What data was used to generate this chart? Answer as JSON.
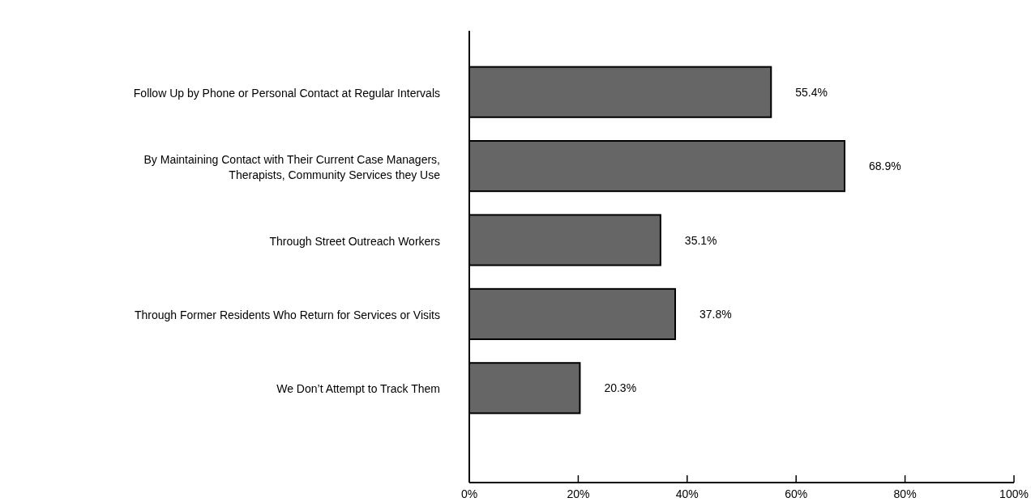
{
  "chart_data": {
    "type": "bar",
    "orientation": "horizontal",
    "categories": [
      "Follow Up by Phone or Personal Contact at Regular Intervals",
      "By Maintaining Contact with Their Current Case Managers, Therapists, Community Services they Use",
      "Through Street Outreach Workers",
      "Through Former Residents Who Return for Services or Visits",
      "We Don’t Attempt to Track Them"
    ],
    "values": [
      55.4,
      68.9,
      35.1,
      37.8,
      20.3
    ],
    "value_labels": [
      "55.4%",
      "68.9%",
      "35.1%",
      "37.8%",
      "20.3%"
    ],
    "color": "#666666",
    "xlim": [
      0,
      100
    ],
    "xticks": [
      {
        "value": 0,
        "label": "0%"
      },
      {
        "value": 20,
        "label": "20%"
      },
      {
        "value": 40,
        "label": "40%"
      },
      {
        "value": 60,
        "label": "60%"
      },
      {
        "value": 80,
        "label": "80%"
      },
      {
        "value": 100,
        "label": "100%"
      }
    ],
    "grid": false
  }
}
